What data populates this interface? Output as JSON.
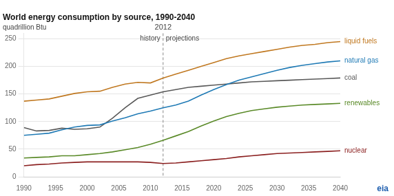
{
  "chart_data": {
    "type": "line",
    "title": "World energy consumption by source, 1990-2040",
    "ylabel": "quadrillion Btu",
    "x": [
      1990,
      1992,
      1994,
      1996,
      1998,
      2000,
      2002,
      2004,
      2006,
      2008,
      2010,
      2012,
      2014,
      2016,
      2018,
      2020,
      2022,
      2024,
      2026,
      2028,
      2030,
      2032,
      2034,
      2036,
      2038,
      2040
    ],
    "series": [
      {
        "name": "liquid fuels",
        "color": "#c07820",
        "values": [
          137,
          139,
          141,
          146,
          151,
          154,
          155,
          162,
          168,
          171,
          170,
          179,
          186,
          193,
          200,
          207,
          214,
          219,
          223,
          227,
          231,
          235,
          238,
          240,
          243,
          245
        ]
      },
      {
        "name": "natural gas",
        "color": "#1f7ab5",
        "values": [
          75,
          77,
          79,
          85,
          90,
          93,
          94,
          101,
          107,
          114,
          119,
          125,
          130,
          137,
          148,
          158,
          167,
          175,
          181,
          187,
          193,
          198,
          202,
          205,
          208,
          210
        ]
      },
      {
        "name": "coal",
        "color": "#595959",
        "values": [
          89,
          83,
          84,
          88,
          86,
          87,
          90,
          106,
          125,
          142,
          148,
          154,
          158,
          162,
          164,
          166,
          168,
          170,
          172,
          173,
          174,
          175,
          176,
          177,
          178,
          179
        ]
      },
      {
        "name": "renewables",
        "color": "#5a8a28",
        "values": [
          34,
          35,
          36,
          38,
          38,
          40,
          42,
          45,
          49,
          53,
          59,
          66,
          74,
          82,
          92,
          101,
          109,
          115,
          120,
          123,
          126,
          128,
          130,
          131,
          132,
          133
        ]
      },
      {
        "name": "nuclear",
        "color": "#8b2020",
        "values": [
          20,
          22,
          23,
          25,
          26,
          27,
          27,
          27,
          27,
          27,
          26,
          24,
          25,
          27,
          29,
          31,
          33,
          36,
          38,
          40,
          42,
          43,
          44,
          45,
          46,
          47
        ]
      }
    ],
    "xlim": [
      1990,
      2040
    ],
    "xticks": [
      1990,
      1995,
      2000,
      2005,
      2010,
      2015,
      2020,
      2025,
      2030,
      2035,
      2040
    ],
    "ylim": [
      0,
      260
    ],
    "yticks": [
      0,
      50,
      100,
      150,
      200,
      250
    ],
    "grid": true,
    "annotations": [
      {
        "type": "vline",
        "x": 2012,
        "label": "2012",
        "before": "history",
        "after": "projections"
      },
      {
        "type": "text",
        "text": "eia",
        "color": "#2060b0"
      }
    ]
  }
}
